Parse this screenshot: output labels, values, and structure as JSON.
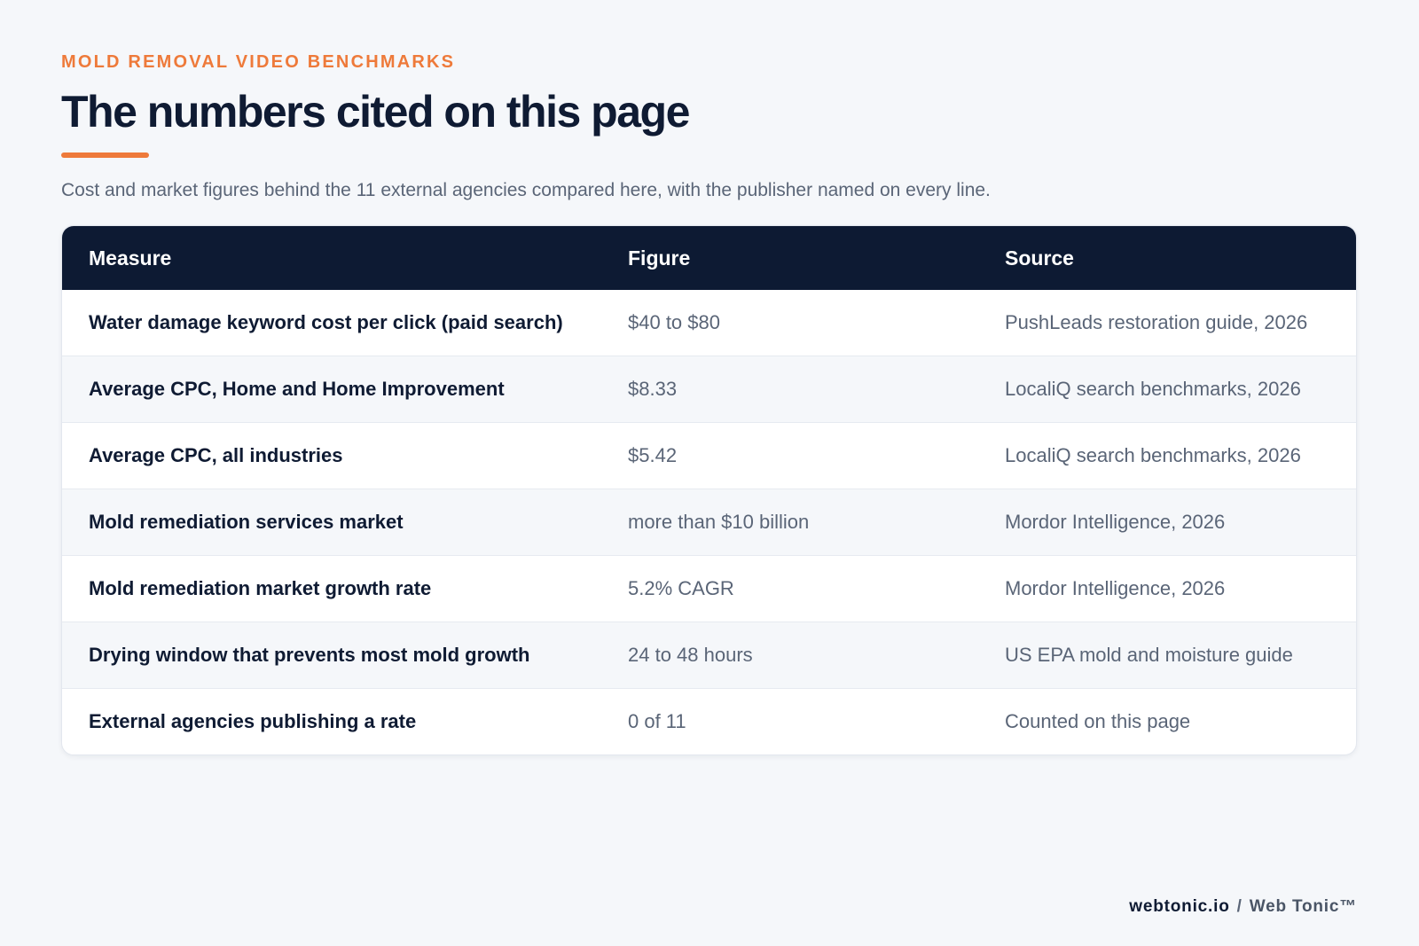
{
  "eyebrow": "MOLD REMOVAL VIDEO BENCHMARKS",
  "title": "The numbers cited on this page",
  "subtitle": "Cost and market figures behind the 11 external agencies compared here, with the publisher named on every line.",
  "table": {
    "headers": {
      "measure": "Measure",
      "figure": "Figure",
      "source": "Source"
    },
    "rows": [
      {
        "measure": "Water damage keyword cost per click (paid search)",
        "figure": "$40 to $80",
        "source": "PushLeads restoration guide, 2026"
      },
      {
        "measure": "Average CPC, Home and Home Improvement",
        "figure": "$8.33",
        "source": "LocaliQ search benchmarks, 2026"
      },
      {
        "measure": "Average CPC, all industries",
        "figure": "$5.42",
        "source": "LocaliQ search benchmarks, 2026"
      },
      {
        "measure": "Mold remediation services market",
        "figure": "more than $10 billion",
        "source": "Mordor Intelligence, 2026"
      },
      {
        "measure": "Mold remediation market growth rate",
        "figure": "5.2% CAGR",
        "source": "Mordor Intelligence, 2026"
      },
      {
        "measure": "Drying window that prevents most mold growth",
        "figure": "24 to 48 hours",
        "source": "US EPA mold and moisture guide"
      },
      {
        "measure": "External agencies publishing a rate",
        "figure": "0 of 11",
        "source": "Counted on this page"
      }
    ]
  },
  "footer": {
    "domain": "webtonic.io",
    "separator": "/",
    "brand": "Web Tonic™"
  },
  "colors": {
    "accent": "#ee7a3a",
    "navy": "#0d1a33",
    "background": "#f5f7fa"
  }
}
